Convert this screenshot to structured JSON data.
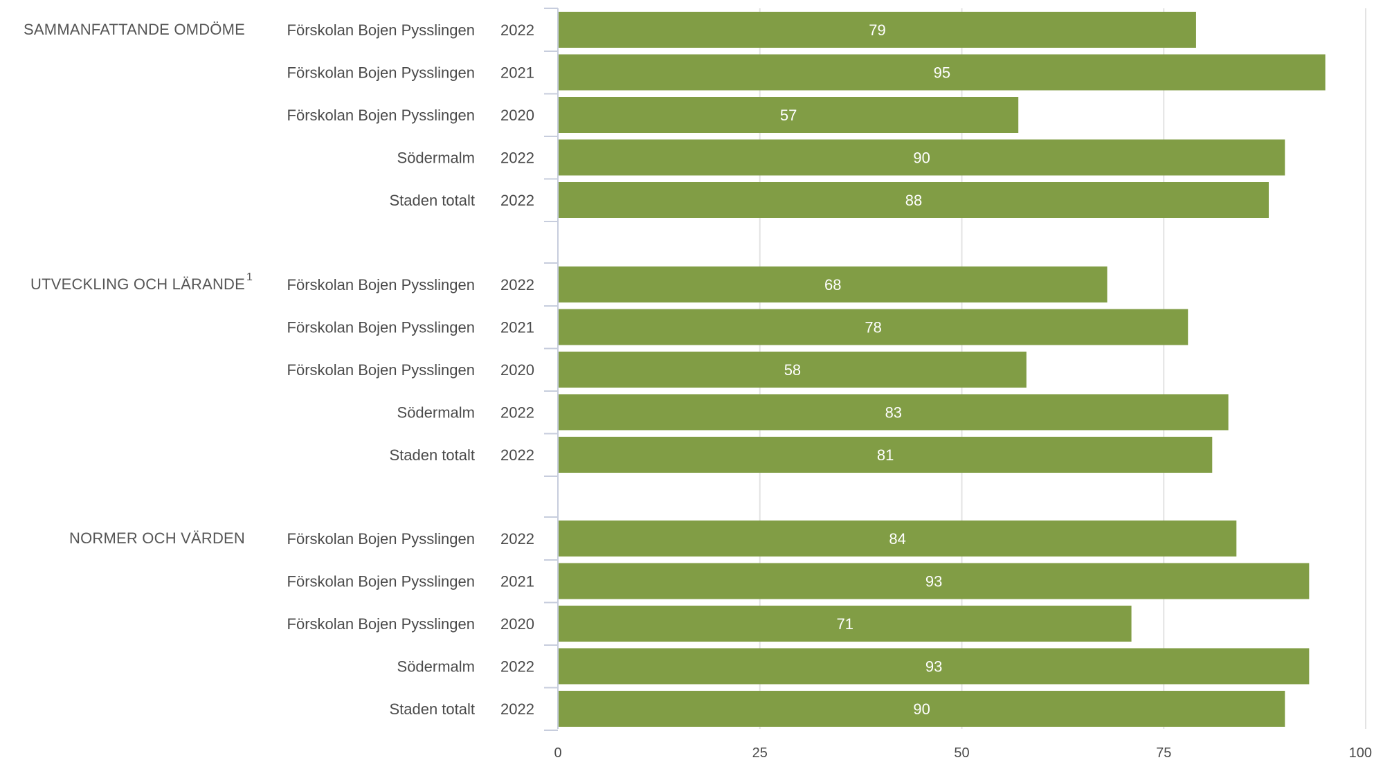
{
  "colors": {
    "bar": "#819d45",
    "grid": "#e3e3e3",
    "axis": "#c7cddd",
    "background": "#ffffff"
  },
  "chart_data": {
    "type": "bar",
    "orientation": "horizontal",
    "xlim": [
      0,
      100
    ],
    "x_ticks": [
      0,
      25,
      50,
      75,
      100
    ],
    "grid": true,
    "legend": "none",
    "groups": [
      {
        "label": "SAMMANFATTANDE OMDÖME",
        "superscript": "",
        "rows": [
          {
            "label": "Förskolan Bojen Pysslingen",
            "year": "2022",
            "value": 79
          },
          {
            "label": "Förskolan Bojen Pysslingen",
            "year": "2021",
            "value": 95
          },
          {
            "label": "Förskolan Bojen Pysslingen",
            "year": "2020",
            "value": 57
          },
          {
            "label": "Södermalm",
            "year": "2022",
            "value": 90
          },
          {
            "label": "Staden totalt",
            "year": "2022",
            "value": 88
          }
        ]
      },
      {
        "label": "UTVECKLING OCH LÄRANDE",
        "superscript": "1",
        "rows": [
          {
            "label": "Förskolan Bojen Pysslingen",
            "year": "2022",
            "value": 68
          },
          {
            "label": "Förskolan Bojen Pysslingen",
            "year": "2021",
            "value": 78
          },
          {
            "label": "Förskolan Bojen Pysslingen",
            "year": "2020",
            "value": 58
          },
          {
            "label": "Södermalm",
            "year": "2022",
            "value": 83
          },
          {
            "label": "Staden totalt",
            "year": "2022",
            "value": 81
          }
        ]
      },
      {
        "label": "NORMER OCH VÄRDEN",
        "superscript": "",
        "rows": [
          {
            "label": "Förskolan Bojen Pysslingen",
            "year": "2022",
            "value": 84
          },
          {
            "label": "Förskolan Bojen Pysslingen",
            "year": "2021",
            "value": 93
          },
          {
            "label": "Förskolan Bojen Pysslingen",
            "year": "2020",
            "value": 71
          },
          {
            "label": "Södermalm",
            "year": "2022",
            "value": 93
          },
          {
            "label": "Staden totalt",
            "year": "2022",
            "value": 90
          }
        ]
      }
    ]
  }
}
